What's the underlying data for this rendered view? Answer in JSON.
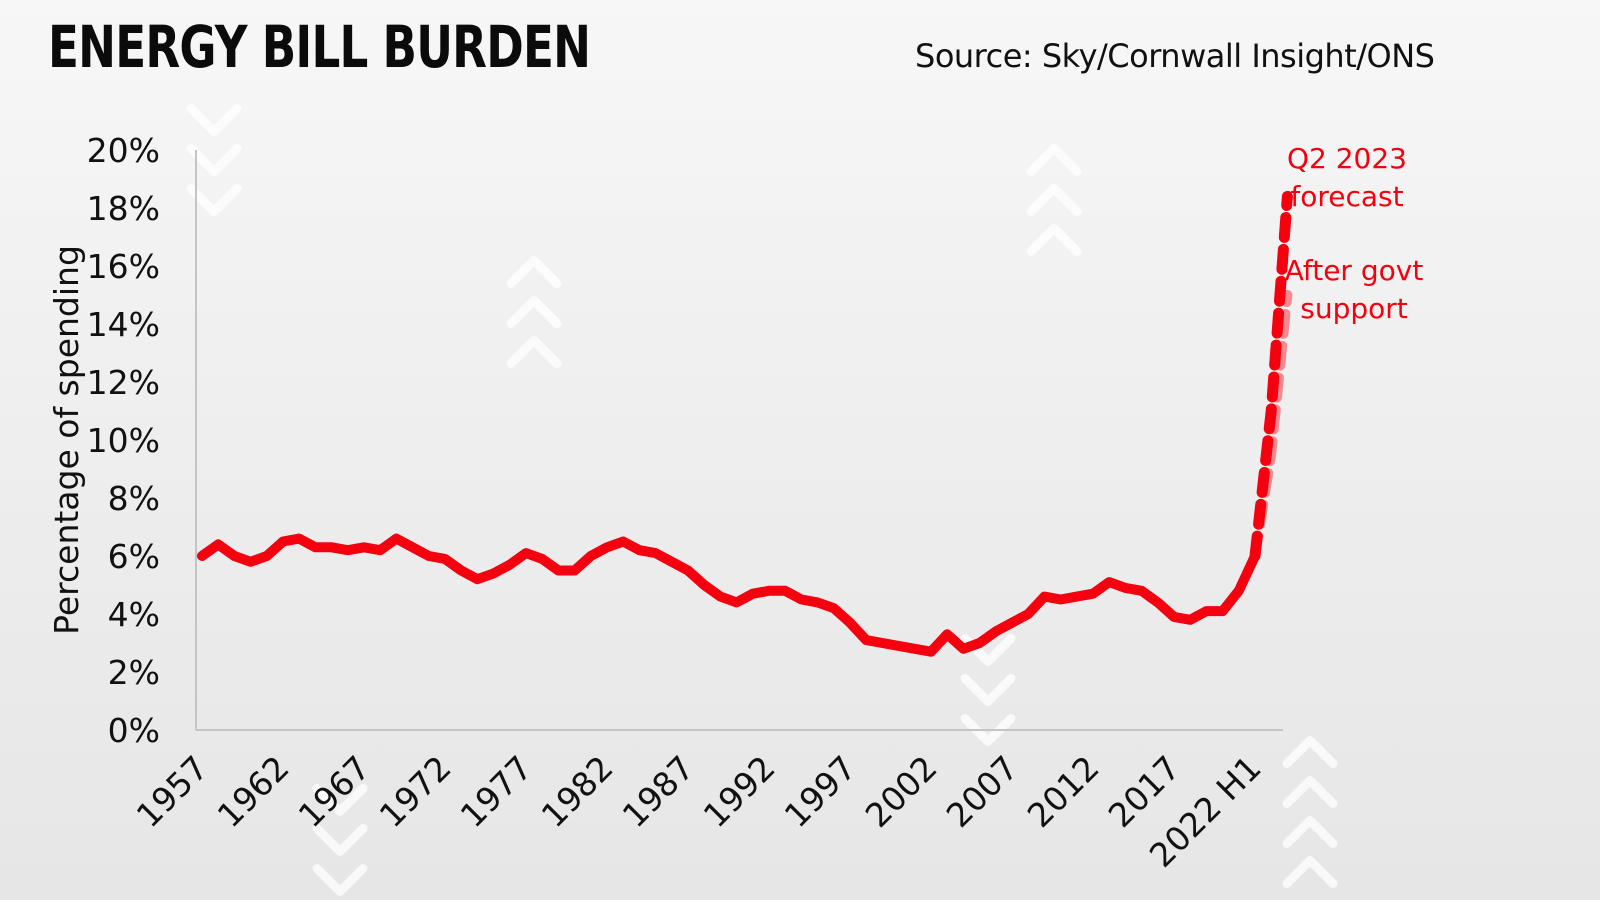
{
  "header": {
    "title": "ENERGY BILL BURDEN",
    "source": "Source: Sky/Cornwall Insight/ONS"
  },
  "colors": {
    "line": "#f5000f",
    "forecast_light": "#f28a92",
    "axis": "#bdbdbd",
    "background": "#eeeeee"
  },
  "decor": {
    "chevron_icon": "chevron-pattern-icon"
  },
  "chart_data": {
    "type": "line",
    "title": "ENERGY BILL BURDEN",
    "ylabel": "Percentage of spending",
    "xlabel": "",
    "ylim": [
      0,
      20
    ],
    "y_ticks": [
      "0%",
      "2%",
      "4%",
      "6%",
      "8%",
      "10%",
      "12%",
      "14%",
      "16%",
      "18%",
      "20%"
    ],
    "x_tick_labels": [
      "1957",
      "1962",
      "1967",
      "1972",
      "1977",
      "1982",
      "1987",
      "1992",
      "1997",
      "2002",
      "2007",
      "2012",
      "2017",
      "2022 H1"
    ],
    "grid": false,
    "categories": [
      "1957",
      "1958",
      "1959",
      "1960",
      "1961",
      "1962",
      "1963",
      "1964",
      "1965",
      "1966",
      "1967",
      "1968",
      "1969",
      "1970",
      "1971",
      "1972",
      "1973",
      "1974",
      "1975",
      "1976",
      "1977",
      "1978",
      "1979",
      "1980",
      "1981",
      "1982",
      "1983",
      "1984",
      "1985",
      "1986",
      "1987",
      "1988",
      "1989",
      "1990",
      "1991",
      "1992",
      "1993",
      "1994",
      "1995",
      "1996",
      "1997",
      "1998",
      "1999",
      "2000",
      "2001",
      "2002",
      "2003",
      "2004",
      "2005",
      "2006",
      "2007",
      "2008",
      "2009",
      "2010",
      "2011",
      "2012",
      "2013",
      "2014",
      "2015",
      "2016",
      "2017",
      "2018",
      "2019",
      "2020",
      "2021",
      "2022 H1",
      "2022 H2",
      "Q2 2023"
    ],
    "series": [
      {
        "values": [
          6.0,
          6.4,
          6.0,
          5.8,
          6.0,
          6.5,
          6.6,
          6.3,
          6.3,
          6.2,
          6.3,
          6.2,
          6.6,
          6.3,
          6.0,
          5.9,
          5.5,
          5.2,
          5.4,
          5.7,
          6.1,
          5.9,
          5.5,
          5.5,
          6.0,
          6.3,
          6.5,
          6.2,
          6.1,
          5.8,
          5.5,
          5.0,
          4.6,
          4.4,
          4.7,
          4.8,
          4.8,
          4.5,
          4.4,
          4.2,
          3.7,
          3.1,
          3.0,
          2.9,
          2.8,
          2.7,
          3.3,
          2.8,
          3.0,
          3.4,
          3.7,
          4.0,
          4.6,
          4.5,
          4.6,
          4.7,
          5.1,
          4.9,
          4.8,
          4.4,
          3.9,
          3.8,
          4.1,
          4.1,
          4.8,
          6.0,
          null,
          null
        ]
      },
      {
        "name": "Q2 2023 forecast",
        "style": "dashed",
        "values": [
          null,
          null,
          null,
          null,
          null,
          null,
          null,
          null,
          null,
          null,
          null,
          null,
          null,
          null,
          null,
          null,
          null,
          null,
          null,
          null,
          null,
          null,
          null,
          null,
          null,
          null,
          null,
          null,
          null,
          null,
          null,
          null,
          null,
          null,
          null,
          null,
          null,
          null,
          null,
          null,
          null,
          null,
          null,
          null,
          null,
          null,
          null,
          null,
          null,
          null,
          null,
          null,
          null,
          null,
          null,
          null,
          null,
          null,
          null,
          null,
          null,
          null,
          null,
          null,
          null,
          6.0,
          11.0,
          18.4
        ]
      },
      {
        "name": "After govt support",
        "style": "dashed-light",
        "values": [
          null,
          null,
          null,
          null,
          null,
          null,
          null,
          null,
          null,
          null,
          null,
          null,
          null,
          null,
          null,
          null,
          null,
          null,
          null,
          null,
          null,
          null,
          null,
          null,
          null,
          null,
          null,
          null,
          null,
          null,
          null,
          null,
          null,
          null,
          null,
          null,
          null,
          null,
          null,
          null,
          null,
          null,
          null,
          null,
          null,
          null,
          null,
          null,
          null,
          null,
          null,
          null,
          null,
          null,
          null,
          null,
          null,
          null,
          null,
          null,
          null,
          null,
          null,
          null,
          null,
          6.0,
          9.5,
          15.0
        ]
      }
    ],
    "annotations": [
      {
        "text": "Q2 2023",
        "series": "forecast"
      },
      {
        "text": "forecast",
        "series": "forecast"
      },
      {
        "text": "After govt",
        "series": "support"
      },
      {
        "text": "support",
        "series": "support"
      }
    ]
  }
}
